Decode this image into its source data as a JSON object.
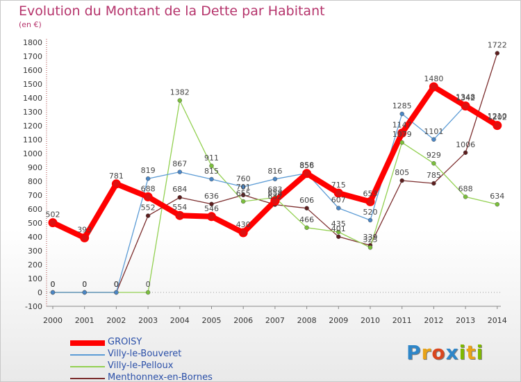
{
  "title": "Evolution du Montant de la Dette par Habitant",
  "subtitle": "(en €)",
  "logo": {
    "text": "Proxiti",
    "letters": [
      "P",
      "r",
      "o",
      "x",
      "i",
      "t",
      "i"
    ],
    "colors": [
      "#2e86c8",
      "#e8a317",
      "#d9461e",
      "#2e86c8",
      "#7fb800",
      "#e8a317",
      "#7fb800"
    ]
  },
  "chart_data": {
    "type": "line",
    "categories": [
      "2000",
      "2001",
      "2002",
      "2003",
      "2004",
      "2005",
      "2006",
      "2007",
      "2008",
      "2009",
      "2010",
      "2011",
      "2012",
      "2013",
      "2014"
    ],
    "ylim": [
      -100,
      1800
    ],
    "yticks": [
      "-100",
      "0",
      "100",
      "200",
      "300",
      "400",
      "500",
      "600",
      "700",
      "800",
      "900",
      "1000",
      "1100",
      "1200",
      "1300",
      "1400",
      "1500",
      "1600",
      "1700",
      "1800"
    ],
    "grid": false,
    "legend_position": "bottom-left",
    "series": [
      {
        "name": "GROISY",
        "color": "#ff0000",
        "marker": "#cc1111",
        "values": [
          502,
          393,
          781,
          688,
          554,
          546,
          430,
          658,
          856,
          715,
          653,
          1147,
          1480,
          1342,
          1202
        ],
        "labels": [
          "502",
          "393",
          "781",
          "688",
          "554",
          "546",
          "430",
          "658",
          "856",
          "715",
          "653",
          "1147",
          "1480",
          "1342",
          "1202"
        ]
      },
      {
        "name": "Villy-le-Bouveret",
        "color": "#5b9bd5",
        "marker": "#4a86c5",
        "values": [
          0,
          0,
          0,
          819,
          867,
          815,
          760,
          816,
          858,
          607,
          520,
          1285,
          1101,
          1348,
          1210
        ],
        "labels": [
          "0",
          "0",
          "0",
          "819",
          "867",
          "815",
          "760",
          "816",
          "858",
          "607",
          "520",
          "1285",
          "1101",
          "1348",
          "1210"
        ]
      },
      {
        "name": "Villy-le-Pelloux",
        "color": "#92d050",
        "marker": "#7bbf3c",
        "values": [
          0,
          0,
          0,
          0,
          1382,
          911,
          655,
          683,
          466,
          435,
          323,
          1079,
          929,
          688,
          634
        ],
        "labels": [
          "0",
          "0",
          "0",
          "0",
          "1382",
          "911",
          "655",
          "683",
          "466",
          "435",
          "323",
          "1079",
          "929",
          "688",
          "634"
        ]
      },
      {
        "name": "Menthonnex-en-Bornes",
        "color": "#7b2c2c",
        "marker": "#5c1e1e",
        "values": [
          0,
          0,
          0,
          552,
          684,
          636,
          701,
          632,
          606,
          401,
          339,
          805,
          785,
          1006,
          1722
        ],
        "labels": [
          "0",
          "0",
          "0",
          "552",
          "684",
          "636",
          "701",
          "632",
          "606",
          "401",
          "339",
          "805",
          "785",
          "1006",
          "1722"
        ]
      }
    ]
  }
}
